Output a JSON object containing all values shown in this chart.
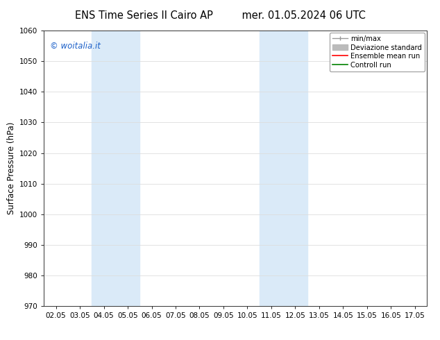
{
  "title_left": "ENS Time Series Il Cairo AP",
  "title_right": "mer. 01.05.2024 06 UTC",
  "ylabel": "Surface Pressure (hPa)",
  "xlim_labels": [
    "02.05",
    "03.05",
    "04.05",
    "05.05",
    "06.05",
    "07.05",
    "08.05",
    "09.05",
    "10.05",
    "11.05",
    "12.05",
    "13.05",
    "14.05",
    "15.05",
    "16.05",
    "17.05"
  ],
  "ylim": [
    970,
    1060
  ],
  "yticks": [
    970,
    980,
    990,
    1000,
    1010,
    1020,
    1030,
    1040,
    1050,
    1060
  ],
  "shaded_bands": [
    {
      "x0_label": "04.05",
      "x1_label": "06.05"
    },
    {
      "x0_label": "11.05",
      "x1_label": "13.05"
    }
  ],
  "shaded_color": "#daeaf8",
  "watermark_text": "© woitalia.it",
  "watermark_color": "#1a5fc8",
  "legend_items": [
    {
      "label": "min/max",
      "color": "#999999",
      "lw": 1,
      "style": "line_with_caps"
    },
    {
      "label": "Deviazione standard",
      "color": "#bbbbbb",
      "lw": 7,
      "style": "bar"
    },
    {
      "label": "Ensemble mean run",
      "color": "red",
      "lw": 1.2,
      "style": "line"
    },
    {
      "label": "Controll run",
      "color": "green",
      "lw": 1.2,
      "style": "line"
    }
  ],
  "background_color": "#ffffff",
  "grid_color": "#dddddd",
  "title_fontsize": 10.5,
  "tick_fontsize": 7.5,
  "ylabel_fontsize": 8.5,
  "watermark_fontsize": 8.5,
  "legend_fontsize": 7.2
}
